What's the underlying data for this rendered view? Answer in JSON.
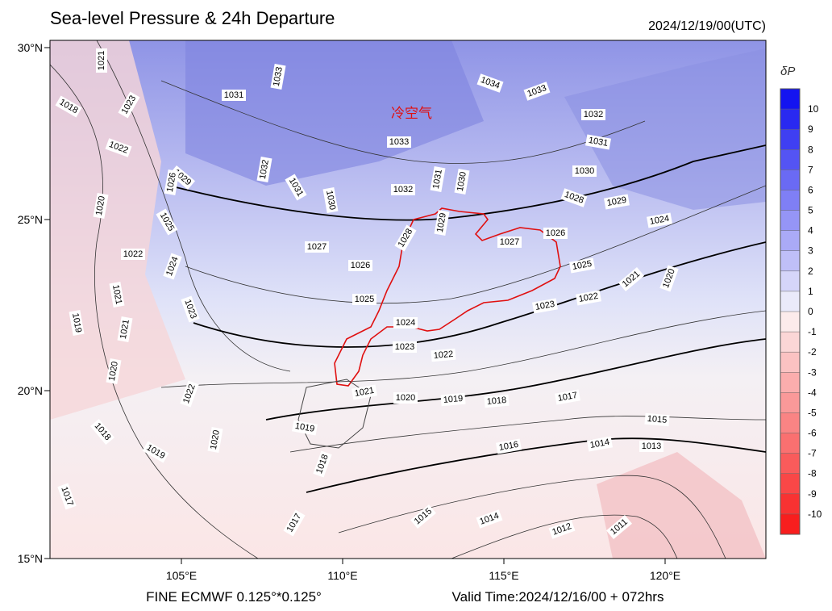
{
  "header": {
    "title": "Sea-level Pressure & 24h Departure",
    "time": "2024/12/19/00(UTC)"
  },
  "map": {
    "annotation": "冷空气",
    "lat_ticks": [
      "30°N",
      "25°N",
      "20°N",
      "15°N"
    ],
    "lon_ticks": [
      "105°E",
      "110°E",
      "115°E",
      "120°E"
    ],
    "contour_labels": [
      "1021",
      "1033",
      "1034",
      "1033",
      "1031",
      "1018",
      "1023",
      "1032",
      "1031",
      "1033",
      "1022",
      "1029",
      "1032",
      "1031",
      "1030",
      "1032",
      "1031",
      "1030",
      "1030",
      "1028",
      "1029",
      "1026",
      "1020",
      "1025",
      "1029",
      "1028",
      "1027",
      "1027",
      "1026",
      "1024",
      "1022",
      "1024",
      "1026",
      "1025",
      "1021",
      "1023",
      "1022",
      "1023",
      "1021",
      "1020",
      "1025",
      "1024",
      "1023",
      "1022",
      "1019",
      "1021",
      "1020",
      "1022",
      "1021",
      "1020",
      "1019",
      "1018",
      "1017",
      "1015",
      "1019",
      "1018",
      "1020",
      "1019",
      "1016",
      "1014",
      "1013",
      "1018",
      "1017",
      "1017",
      "1015",
      "1014",
      "1012",
      "1011"
    ]
  },
  "colorbar": {
    "label": "δP",
    "ticks": [
      "10",
      "9",
      "8",
      "7",
      "6",
      "5",
      "4",
      "3",
      "2",
      "1",
      "0",
      "-1",
      "-2",
      "-3",
      "-4",
      "-5",
      "-6",
      "-7",
      "-8",
      "-9",
      "-10"
    ]
  },
  "footer": {
    "left": "FINE ECMWF 0.125°*0.125°",
    "right": "Valid Time:2024/12/16/00 + 072hrs"
  }
}
